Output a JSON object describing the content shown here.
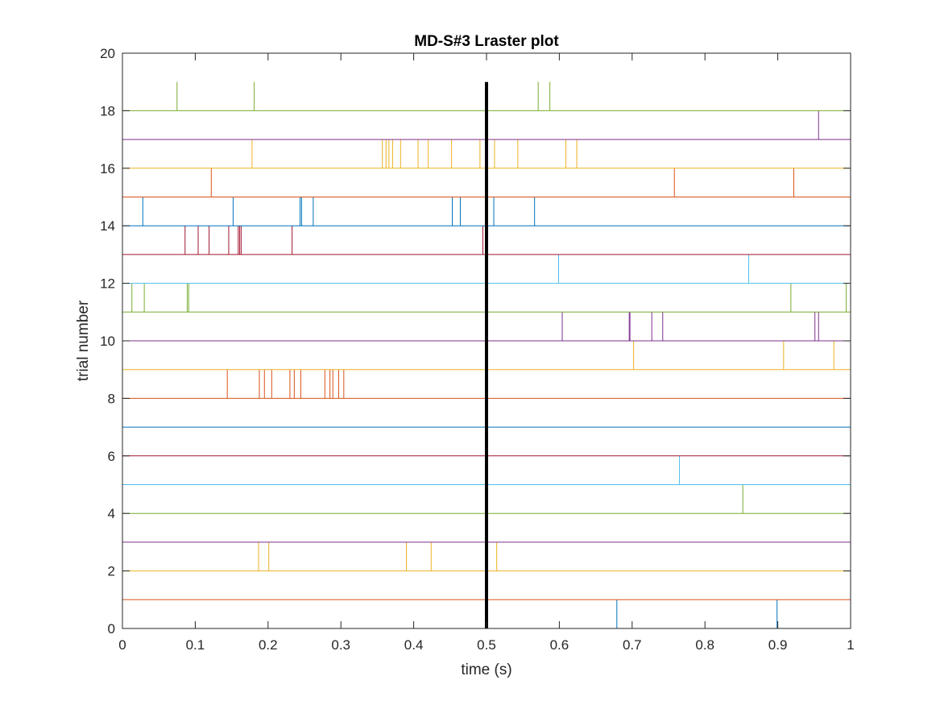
{
  "chart_data": {
    "type": "scatter",
    "title": "MD-S#3 Lraster plot",
    "xlabel": "time (s)",
    "ylabel": "trial number",
    "xlim": [
      0,
      1
    ],
    "ylim": [
      0,
      20
    ],
    "xticks": [
      "0",
      "0.1",
      "0.2",
      "0.3",
      "0.4",
      "0.5",
      "0.6",
      "0.7",
      "0.8",
      "0.9",
      "1"
    ],
    "yticks": [
      "0",
      "2",
      "4",
      "6",
      "8",
      "10",
      "12",
      "14",
      "16",
      "18",
      "20"
    ],
    "grid": false,
    "stimulus_marker": {
      "x": 0.5,
      "y_range": [
        0,
        19
      ],
      "color": "#000000"
    },
    "series": [
      {
        "trial": 0,
        "color": "#0072BD",
        "spikes": [
          0.679,
          0.899
        ]
      },
      {
        "trial": 1,
        "color": "#D95319",
        "spikes": []
      },
      {
        "trial": 2,
        "color": "#EDB120",
        "spikes": [
          0.187,
          0.201,
          0.39,
          0.424,
          0.514
        ]
      },
      {
        "trial": 3,
        "color": "#7E2F8E",
        "spikes": []
      },
      {
        "trial": 4,
        "color": "#77AC30",
        "spikes": [
          0.852
        ]
      },
      {
        "trial": 5,
        "color": "#4DBEEE",
        "spikes": [
          0.765
        ]
      },
      {
        "trial": 6,
        "color": "#A2142F",
        "spikes": []
      },
      {
        "trial": 7,
        "color": "#0072BD",
        "spikes": []
      },
      {
        "trial": 8,
        "color": "#D95319",
        "spikes": [
          0.144,
          0.188,
          0.195,
          0.205,
          0.23,
          0.236,
          0.245,
          0.278,
          0.285,
          0.289,
          0.297,
          0.304
        ]
      },
      {
        "trial": 9,
        "color": "#EDB120",
        "spikes": [
          0.702,
          0.908,
          0.977
        ]
      },
      {
        "trial": 10,
        "color": "#7E2F8E",
        "spikes": [
          0.604,
          0.696,
          0.697,
          0.727,
          0.742,
          0.951,
          0.956
        ]
      },
      {
        "trial": 11,
        "color": "#77AC30",
        "spikes": [
          0.013,
          0.03,
          0.089,
          0.091,
          0.918,
          0.994
        ]
      },
      {
        "trial": 12,
        "color": "#4DBEEE",
        "spikes": [
          0.599,
          0.86
        ]
      },
      {
        "trial": 13,
        "color": "#A2142F",
        "spikes": [
          0.086,
          0.104,
          0.119,
          0.146,
          0.159,
          0.161,
          0.163,
          0.233,
          0.495
        ]
      },
      {
        "trial": 14,
        "color": "#0072BD",
        "spikes": [
          0.028,
          0.152,
          0.244,
          0.246,
          0.262,
          0.453,
          0.464,
          0.51,
          0.566
        ]
      },
      {
        "trial": 15,
        "color": "#D95319",
        "spikes": [
          0.122,
          0.758,
          0.922
        ]
      },
      {
        "trial": 16,
        "color": "#EDB120",
        "spikes": [
          0.178,
          0.357,
          0.362,
          0.366,
          0.371,
          0.382,
          0.406,
          0.42,
          0.452,
          0.491,
          0.511,
          0.543,
          0.609,
          0.624
        ]
      },
      {
        "trial": 17,
        "color": "#7E2F8E",
        "spikes": [
          0.956
        ]
      },
      {
        "trial": 18,
        "color": "#77AC30",
        "spikes": [
          0.075,
          0.181,
          0.571,
          0.587
        ]
      }
    ]
  }
}
